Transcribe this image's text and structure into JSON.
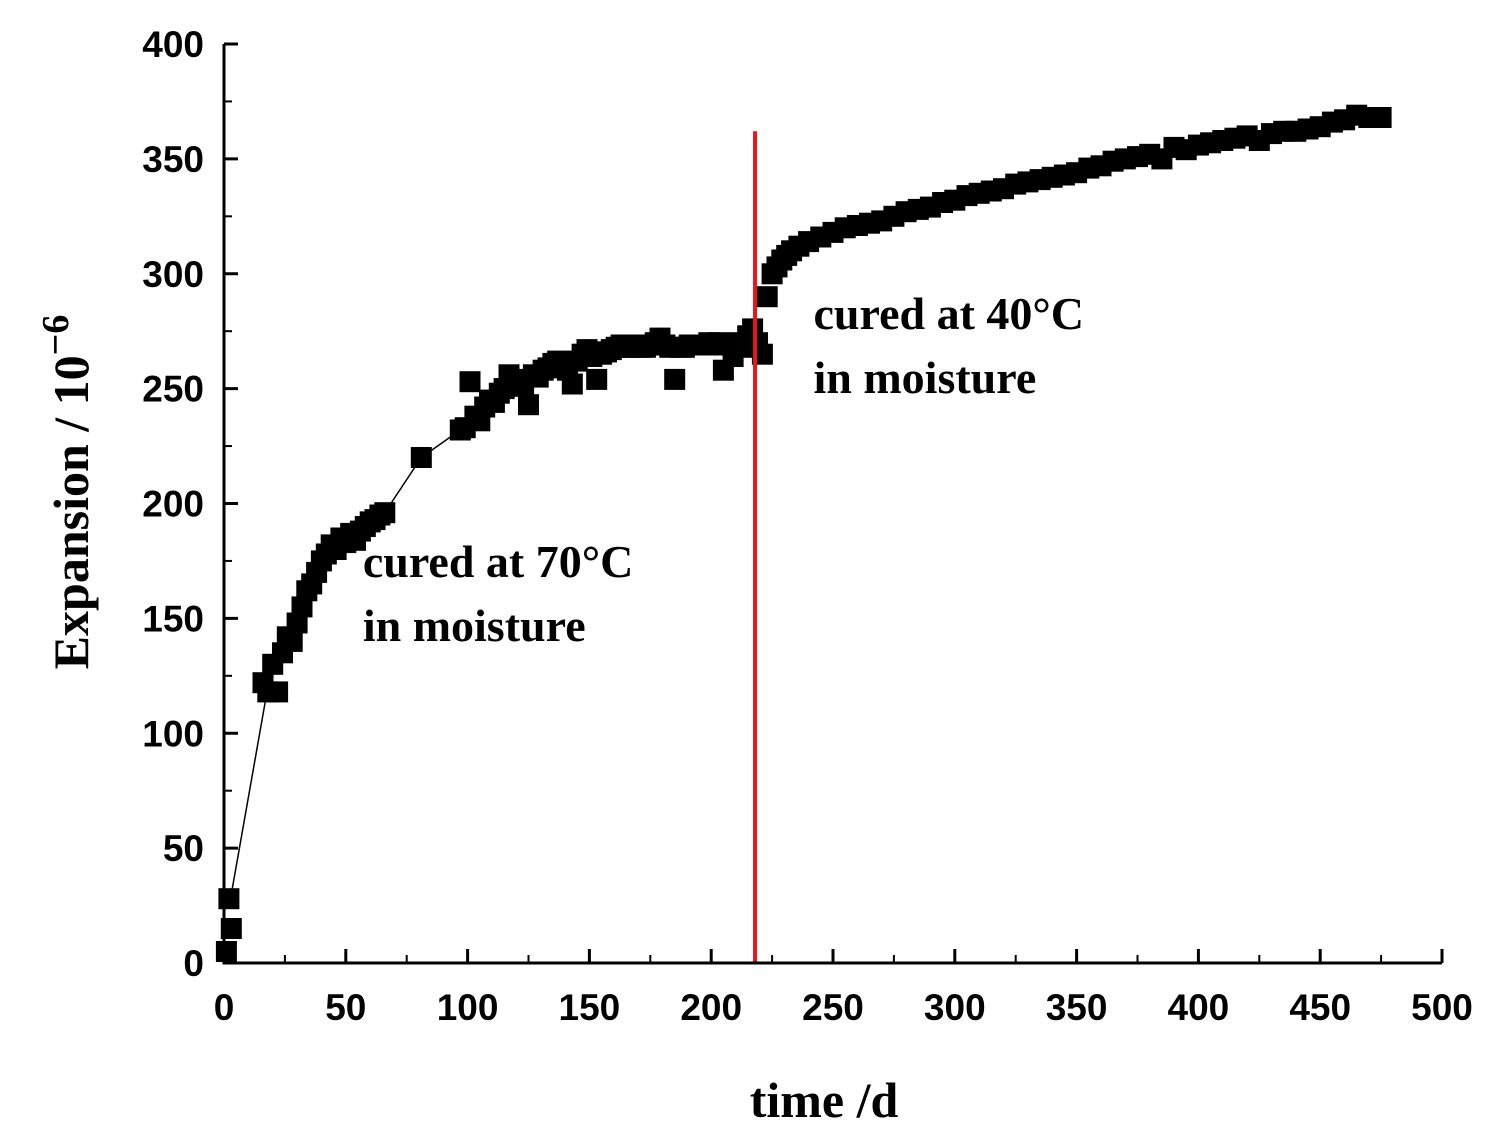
{
  "chart_data": {
    "type": "scatter",
    "title": "",
    "xlabel": "time /d",
    "ylabel_base": "Expansion / 10",
    "ylabel_exponent": "−6",
    "xlim": [
      0,
      500
    ],
    "ylim": [
      0,
      400
    ],
    "x_ticks": [
      0,
      50,
      100,
      150,
      200,
      250,
      300,
      350,
      400,
      450,
      500
    ],
    "y_ticks": [
      0,
      50,
      100,
      150,
      200,
      250,
      300,
      350,
      400
    ],
    "x_tick_labels": [
      "0",
      "50",
      "100",
      "150",
      "200",
      "250",
      "300",
      "350",
      "400",
      "450",
      "500"
    ],
    "y_tick_labels": [
      "0",
      "50",
      "100",
      "150",
      "200",
      "250",
      "300",
      "350",
      "400"
    ],
    "marker": "square",
    "marker_color": "#000000",
    "series": [
      {
        "name": "Expansion",
        "points": [
          [
            1,
            5
          ],
          [
            2,
            28
          ],
          [
            3,
            15
          ],
          [
            16,
            122
          ],
          [
            18,
            118
          ],
          [
            20,
            130
          ],
          [
            22,
            118
          ],
          [
            24,
            135
          ],
          [
            26,
            142
          ],
          [
            28,
            140
          ],
          [
            30,
            148
          ],
          [
            32,
            155
          ],
          [
            34,
            162
          ],
          [
            36,
            165
          ],
          [
            38,
            170
          ],
          [
            40,
            175
          ],
          [
            42,
            178
          ],
          [
            44,
            182
          ],
          [
            46,
            180
          ],
          [
            48,
            185
          ],
          [
            50,
            183
          ],
          [
            52,
            187
          ],
          [
            54,
            184
          ],
          [
            56,
            188
          ],
          [
            58,
            190
          ],
          [
            60,
            192
          ],
          [
            62,
            193
          ],
          [
            64,
            195
          ],
          [
            66,
            196
          ],
          [
            81,
            220
          ],
          [
            97,
            232
          ],
          [
            99,
            233
          ],
          [
            101,
            253
          ],
          [
            103,
            238
          ],
          [
            105,
            236
          ],
          [
            107,
            242
          ],
          [
            109,
            245
          ],
          [
            111,
            244
          ],
          [
            113,
            248
          ],
          [
            115,
            250
          ],
          [
            117,
            256
          ],
          [
            119,
            252
          ],
          [
            121,
            254
          ],
          [
            123,
            251
          ],
          [
            125,
            243
          ],
          [
            127,
            256
          ],
          [
            129,
            255
          ],
          [
            131,
            258
          ],
          [
            133,
            259
          ],
          [
            135,
            261
          ],
          [
            137,
            262
          ],
          [
            139,
            260
          ],
          [
            141,
            258
          ],
          [
            143,
            252
          ],
          [
            145,
            262
          ],
          [
            147,
            265
          ],
          [
            149,
            267
          ],
          [
            151,
            264
          ],
          [
            153,
            254
          ],
          [
            155,
            265
          ],
          [
            157,
            266
          ],
          [
            159,
            267
          ],
          [
            161,
            268
          ],
          [
            163,
            269
          ],
          [
            165,
            268
          ],
          [
            167,
            268
          ],
          [
            169,
            269
          ],
          [
            171,
            268
          ],
          [
            173,
            268
          ],
          [
            175,
            269
          ],
          [
            177,
            270
          ],
          [
            179,
            272
          ],
          [
            181,
            269
          ],
          [
            183,
            268
          ],
          [
            185,
            254
          ],
          [
            187,
            268
          ],
          [
            189,
            268
          ],
          [
            191,
            269
          ],
          [
            193,
            269
          ],
          [
            195,
            269
          ],
          [
            197,
            269
          ],
          [
            199,
            270
          ],
          [
            201,
            269
          ],
          [
            203,
            270
          ],
          [
            205,
            258
          ],
          [
            207,
            269
          ],
          [
            209,
            264
          ],
          [
            211,
            270
          ],
          [
            213,
            268
          ],
          [
            215,
            273
          ],
          [
            217,
            276
          ],
          [
            219,
            270
          ],
          [
            221,
            265
          ],
          [
            223,
            290
          ],
          [
            225,
            300
          ],
          [
            227,
            303
          ],
          [
            229,
            306
          ],
          [
            231,
            308
          ],
          [
            233,
            310
          ],
          [
            236,
            312
          ],
          [
            240,
            314
          ],
          [
            245,
            316
          ],
          [
            250,
            318
          ],
          [
            255,
            320
          ],
          [
            260,
            321
          ],
          [
            265,
            322
          ],
          [
            270,
            323
          ],
          [
            275,
            325
          ],
          [
            280,
            327
          ],
          [
            285,
            328
          ],
          [
            290,
            329
          ],
          [
            295,
            331
          ],
          [
            300,
            332
          ],
          [
            305,
            334
          ],
          [
            310,
            335
          ],
          [
            315,
            336
          ],
          [
            320,
            337
          ],
          [
            325,
            339
          ],
          [
            330,
            340
          ],
          [
            335,
            341
          ],
          [
            340,
            342
          ],
          [
            345,
            343
          ],
          [
            350,
            344
          ],
          [
            355,
            346
          ],
          [
            360,
            347
          ],
          [
            365,
            349
          ],
          [
            370,
            350
          ],
          [
            375,
            351
          ],
          [
            380,
            352
          ],
          [
            385,
            350
          ],
          [
            390,
            355
          ],
          [
            395,
            354
          ],
          [
            400,
            356
          ],
          [
            405,
            357
          ],
          [
            410,
            358
          ],
          [
            415,
            359
          ],
          [
            420,
            360
          ],
          [
            425,
            358
          ],
          [
            430,
            361
          ],
          [
            435,
            362
          ],
          [
            440,
            362
          ],
          [
            445,
            363
          ],
          [
            450,
            364
          ],
          [
            455,
            366
          ],
          [
            460,
            367
          ],
          [
            465,
            369
          ],
          [
            470,
            368
          ],
          [
            475,
            368
          ]
        ]
      }
    ],
    "connector_line": {
      "points": [
        [
          3,
          30
        ],
        [
          18,
          120
        ],
        [
          40,
          175
        ],
        [
          66,
          196
        ],
        [
          81,
          220
        ],
        [
          97,
          232
        ]
      ]
    },
    "reference_line": {
      "x": 218,
      "y_range": [
        0,
        362
      ],
      "color": "#e8161b"
    },
    "annotations": [
      {
        "lines": [
          "cured at 70°C",
          "in moisture"
        ],
        "anchor_x": 57,
        "anchor_y": 168
      },
      {
        "lines": [
          "cured at 40°C",
          "in moisture"
        ],
        "anchor_x": 242,
        "anchor_y": 276
      }
    ]
  }
}
